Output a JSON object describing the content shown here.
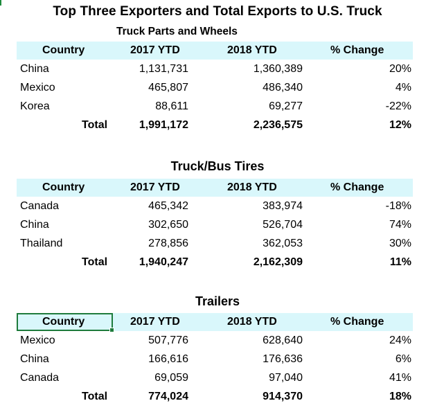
{
  "title": "Top Three Exporters and Total Exports to U.S. Truck",
  "sections": [
    {
      "title": "Truck Parts and Wheels",
      "headers": [
        "Country",
        "2017 YTD",
        "2018 YTD",
        "% Change"
      ],
      "rows": [
        {
          "country": "China",
          "y2017": "1,131,731",
          "y2018": "1,360,389",
          "change": "20%"
        },
        {
          "country": "Mexico",
          "y2017": "465,807",
          "y2018": "486,340",
          "change": "4%"
        },
        {
          "country": "Korea",
          "y2017": "88,611",
          "y2018": "69,277",
          "change": "-22%"
        }
      ],
      "total": {
        "label": "Total",
        "y2017": "1,991,172",
        "y2018": "2,236,575",
        "change": "12%"
      }
    },
    {
      "title": "Truck/Bus Tires",
      "headers": [
        "Country",
        "2017 YTD",
        "2018 YTD",
        "% Change"
      ],
      "rows": [
        {
          "country": "Canada",
          "y2017": "465,342",
          "y2018": "383,974",
          "change": "-18%"
        },
        {
          "country": "China",
          "y2017": "302,650",
          "y2018": "526,704",
          "change": "74%"
        },
        {
          "country": "Thailand",
          "y2017": "278,856",
          "y2018": "362,053",
          "change": "30%"
        }
      ],
      "total": {
        "label": "Total",
        "y2017": "1,940,247",
        "y2018": "2,162,309",
        "change": "11%"
      }
    },
    {
      "title": "Trailers",
      "headers": [
        "Country",
        "2017 YTD",
        "2018 YTD",
        "% Change"
      ],
      "rows": [
        {
          "country": "Mexico",
          "y2017": "507,776",
          "y2018": "628,640",
          "change": "24%"
        },
        {
          "country": "China",
          "y2017": "166,616",
          "y2018": "176,636",
          "change": "6%"
        },
        {
          "country": "Canada",
          "y2017": "69,059",
          "y2018": "97,040",
          "change": "41%"
        }
      ],
      "total": {
        "label": "Total",
        "y2017": "774,024",
        "y2018": "914,370",
        "change": "18%"
      }
    }
  ],
  "colors": {
    "header_fill": "#d9f7fb",
    "selection": "#1e7b3c"
  }
}
